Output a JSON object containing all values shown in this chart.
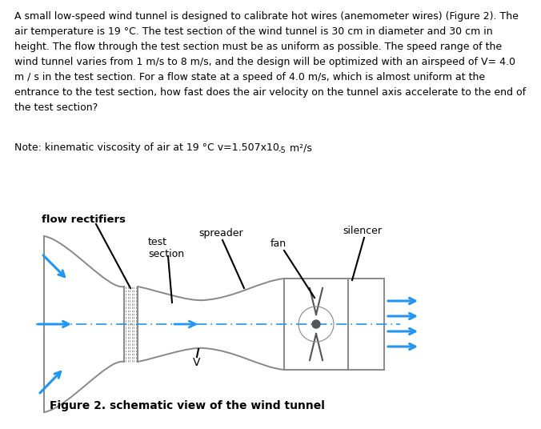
{
  "paragraph_text": "A small low-speed wind tunnel is designed to calibrate hot wires (anemometer wires) (Figure 2). The\nair temperature is 19 °C. The test section of the wind tunnel is 30 cm in diameter and 30 cm in\nheight. The flow through the test section must be as uniform as possible. The speed range of the\nwind tunnel varies from 1 m/s to 8 m/s, and the design will be optimized with an airspeed of V= 4.0\nm / s in the test section. For a flow state at a speed of 4.0 m/s, which is almost uniform at the\nentrance to the test section, how fast does the air velocity on the tunnel axis accelerate to the end of\nthe test section?",
  "note_base": "Note: kinematic viscosity of air at 19 °C v=1.507x10",
  "note_sup": "-5",
  "note_end": " m²/s",
  "label_flow_rectifiers": "flow rectifiers",
  "label_spreader": "spreader",
  "label_test_section": "test\nsection",
  "label_fan": "fan",
  "label_silencer": "silencer",
  "label_V": "V",
  "figure_caption": "Figure 2. schematic view of the wind tunnel",
  "bg_color": "#ffffff",
  "text_color": "#000000",
  "blue_color": "#2196F3",
  "gray_color": "#888888",
  "dark_gray": "#555555",
  "body_fontsize": 9.0,
  "note_fontsize": 9.0,
  "label_fontsize": 9.0,
  "caption_fontsize": 10.0
}
